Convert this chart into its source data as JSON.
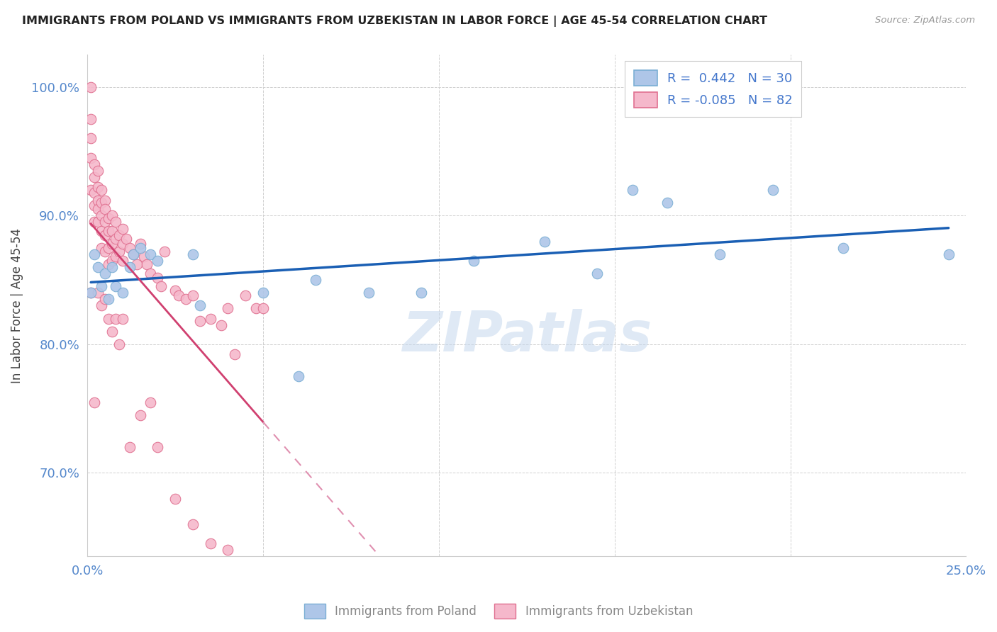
{
  "title": "IMMIGRANTS FROM POLAND VS IMMIGRANTS FROM UZBEKISTAN IN LABOR FORCE | AGE 45-54 CORRELATION CHART",
  "source": "Source: ZipAtlas.com",
  "ylabel": "In Labor Force | Age 45-54",
  "xlim": [
    0.0,
    0.25
  ],
  "ylim": [
    0.635,
    1.025
  ],
  "xticks": [
    0.0,
    0.05,
    0.1,
    0.15,
    0.2,
    0.25
  ],
  "xticklabels": [
    "0.0%",
    "",
    "",
    "",
    "",
    "25.0%"
  ],
  "yticks": [
    0.7,
    0.8,
    0.9,
    1.0
  ],
  "yticklabels": [
    "70.0%",
    "80.0%",
    "90.0%",
    "100.0%"
  ],
  "poland_color": "#aec6e8",
  "poland_edge": "#7bafd4",
  "uzbekistan_color": "#f5b8cb",
  "uzbekistan_edge": "#e07090",
  "poland_R": 0.442,
  "poland_N": 30,
  "uzbekistan_R": -0.085,
  "uzbekistan_N": 82,
  "watermark": "ZIPatlas",
  "poland_trend_color": "#1a5fb4",
  "uzbekistan_trend_solid_color": "#d04070",
  "uzbekistan_trend_dash_color": "#e090b0",
  "poland_x": [
    0.001,
    0.002,
    0.003,
    0.004,
    0.005,
    0.006,
    0.007,
    0.008,
    0.01,
    0.012,
    0.013,
    0.015,
    0.018,
    0.02,
    0.03,
    0.032,
    0.05,
    0.06,
    0.065,
    0.08,
    0.095,
    0.11,
    0.13,
    0.145,
    0.155,
    0.165,
    0.18,
    0.195,
    0.215,
    0.245
  ],
  "poland_y": [
    0.84,
    0.87,
    0.86,
    0.845,
    0.855,
    0.835,
    0.86,
    0.845,
    0.84,
    0.86,
    0.87,
    0.875,
    0.87,
    0.865,
    0.87,
    0.83,
    0.84,
    0.775,
    0.85,
    0.84,
    0.84,
    0.865,
    0.88,
    0.855,
    0.92,
    0.91,
    0.87,
    0.92,
    0.875,
    0.87
  ],
  "uzbekistan_x": [
    0.001,
    0.001,
    0.001,
    0.001,
    0.001,
    0.002,
    0.002,
    0.002,
    0.002,
    0.002,
    0.003,
    0.003,
    0.003,
    0.003,
    0.003,
    0.004,
    0.004,
    0.004,
    0.004,
    0.004,
    0.005,
    0.005,
    0.005,
    0.005,
    0.005,
    0.006,
    0.006,
    0.006,
    0.006,
    0.007,
    0.007,
    0.007,
    0.007,
    0.008,
    0.008,
    0.008,
    0.009,
    0.009,
    0.01,
    0.01,
    0.01,
    0.011,
    0.012,
    0.013,
    0.014,
    0.015,
    0.016,
    0.017,
    0.018,
    0.02,
    0.021,
    0.022,
    0.025,
    0.026,
    0.028,
    0.03,
    0.032,
    0.035,
    0.038,
    0.04,
    0.042,
    0.045,
    0.048,
    0.05,
    0.001,
    0.002,
    0.003,
    0.004,
    0.005,
    0.006,
    0.007,
    0.008,
    0.009,
    0.01,
    0.012,
    0.015,
    0.018,
    0.02,
    0.025,
    0.03,
    0.035,
    0.04
  ],
  "uzbekistan_y": [
    1.0,
    0.975,
    0.96,
    0.945,
    0.92,
    0.94,
    0.93,
    0.918,
    0.908,
    0.895,
    0.935,
    0.922,
    0.912,
    0.905,
    0.895,
    0.92,
    0.91,
    0.9,
    0.888,
    0.875,
    0.912,
    0.905,
    0.895,
    0.885,
    0.872,
    0.898,
    0.888,
    0.875,
    0.862,
    0.9,
    0.888,
    0.878,
    0.865,
    0.895,
    0.882,
    0.868,
    0.885,
    0.872,
    0.89,
    0.878,
    0.865,
    0.882,
    0.875,
    0.87,
    0.862,
    0.878,
    0.868,
    0.862,
    0.855,
    0.852,
    0.845,
    0.872,
    0.842,
    0.838,
    0.835,
    0.838,
    0.818,
    0.82,
    0.815,
    0.828,
    0.792,
    0.838,
    0.828,
    0.828,
    0.84,
    0.755,
    0.84,
    0.83,
    0.835,
    0.82,
    0.81,
    0.82,
    0.8,
    0.82,
    0.72,
    0.745,
    0.755,
    0.72,
    0.68,
    0.66,
    0.645,
    0.64
  ]
}
